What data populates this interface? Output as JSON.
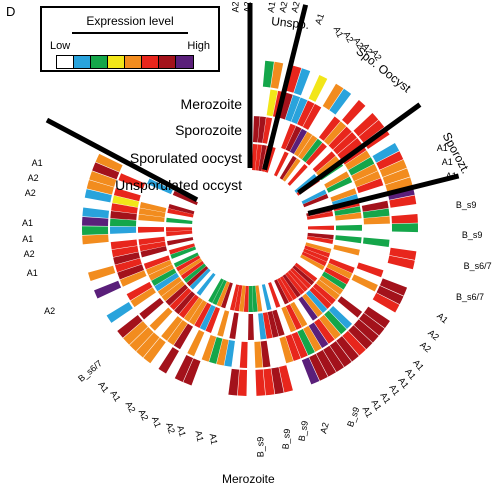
{
  "panel_letter": "D",
  "legend": {
    "title": "Expression level",
    "low": "Low",
    "high": "High",
    "scale_colors": [
      "#ffffff",
      "#29a3dc",
      "#14a64a",
      "#f2e619",
      "#f28c1e",
      "#e8261c",
      "#a3121b",
      "#5a1f7a"
    ]
  },
  "ring_key": [
    "Merozoite",
    "Sporozoite",
    "Sporulated oocyst",
    "Unsporulated occyst"
  ],
  "sector_labels": {
    "unspo": "Unspo.",
    "spo_oocyst": "Spo. Oocyst",
    "sporozt": "Sporozt.",
    "merozoite": "Merozoite"
  },
  "sample_labels": [
    {
      "text": "A2",
      "a": -3,
      "r": 200,
      "rot": -90
    },
    {
      "text": "A2",
      "a": 0,
      "r": 200,
      "rot": -90
    },
    {
      "text": "A1",
      "a": 6,
      "r": 200,
      "rot": -80
    },
    {
      "text": "A2",
      "a": 9,
      "r": 200,
      "rot": -78
    },
    {
      "text": "A2",
      "a": 12,
      "r": 200,
      "rot": -76
    },
    {
      "text": "A1",
      "a": 19,
      "r": 190,
      "rot": -70
    },
    {
      "text": "A1",
      "a": 25,
      "r": 185,
      "rot": 64
    },
    {
      "text": "A2",
      "a": 28,
      "r": 185,
      "rot": 62
    },
    {
      "text": "A2",
      "a": 31,
      "r": 185,
      "rot": 60
    },
    {
      "text": "A2",
      "a": 34,
      "r": 185,
      "rot": 58
    },
    {
      "text": "A2",
      "a": 37,
      "r": 185,
      "rot": 56
    },
    {
      "text": "A1",
      "a": 68,
      "r": 180,
      "rot": 0
    },
    {
      "text": "A1",
      "a": 72,
      "r": 180,
      "rot": 0
    },
    {
      "text": "A1",
      "a": 76,
      "r": 180,
      "rot": 0
    },
    {
      "text": "B_s9",
      "a": 84,
      "r": 185,
      "rot": 0
    },
    {
      "text": "B_s9",
      "a": 92,
      "r": 190,
      "rot": 0
    },
    {
      "text": "B_s6/7",
      "a": 100,
      "r": 195,
      "rot": 0
    },
    {
      "text": "B_s6/7",
      "a": 108,
      "r": 195,
      "rot": 0
    },
    {
      "text": "A1",
      "a": 115,
      "r": 185,
      "rot": 40
    },
    {
      "text": "A2",
      "a": 120,
      "r": 185,
      "rot": 40
    },
    {
      "text": "A2",
      "a": 124,
      "r": 185,
      "rot": 40
    },
    {
      "text": "A1",
      "a": 129,
      "r": 190,
      "rot": 50
    },
    {
      "text": "A1",
      "a": 132,
      "r": 190,
      "rot": 52
    },
    {
      "text": "A1",
      "a": 135,
      "r": 190,
      "rot": 54
    },
    {
      "text": "A1",
      "a": 138,
      "r": 190,
      "rot": 56
    },
    {
      "text": "A1",
      "a": 141,
      "r": 190,
      "rot": 58
    },
    {
      "text": "A1",
      "a": 144,
      "r": 190,
      "rot": 60
    },
    {
      "text": "A1",
      "a": 147,
      "r": 190,
      "rot": 62
    },
    {
      "text": "B_s9",
      "a": 152,
      "r": 185,
      "rot": -70
    },
    {
      "text": "A2",
      "a": 159,
      "r": 185,
      "rot": -75
    },
    {
      "text": "B_s9",
      "a": 166,
      "r": 180,
      "rot": -80
    },
    {
      "text": "B_s9",
      "a": 171,
      "r": 185,
      "rot": -85
    },
    {
      "text": "B_s9",
      "a": 178,
      "r": 190,
      "rot": -90
    },
    {
      "text": "A1",
      "a": 189,
      "r": 185,
      "rot": 80
    },
    {
      "text": "A1",
      "a": 193,
      "r": 185,
      "rot": 78
    },
    {
      "text": "A1",
      "a": 198,
      "r": 185,
      "rot": 75
    },
    {
      "text": "A2",
      "a": 201,
      "r": 185,
      "rot": 72
    },
    {
      "text": "A1",
      "a": 205,
      "r": 185,
      "rot": 70
    },
    {
      "text": "A2",
      "a": 209,
      "r": 185,
      "rot": 66
    },
    {
      "text": "A2",
      "a": 213,
      "r": 185,
      "rot": 62
    },
    {
      "text": "A1",
      "a": 218,
      "r": 185,
      "rot": 58
    },
    {
      "text": "A1",
      "a": 222,
      "r": 185,
      "rot": 54
    },
    {
      "text": "B_s6/7",
      "a": 229,
      "r": 190,
      "rot": -40
    },
    {
      "text": "A2",
      "a": 247,
      "r": 185,
      "rot": 0
    },
    {
      "text": "A1",
      "a": 258,
      "r": 190,
      "rot": 0
    },
    {
      "text": "A2",
      "a": 263,
      "r": 190,
      "rot": 0
    },
    {
      "text": "A1",
      "a": 267,
      "r": 190,
      "rot": 0
    },
    {
      "text": "A1",
      "a": 271,
      "r": 190,
      "rot": 0
    },
    {
      "text": "A2",
      "a": 279,
      "r": 190,
      "rot": 0
    },
    {
      "text": "A2",
      "a": 283,
      "r": 190,
      "rot": 0
    },
    {
      "text": "A1",
      "a": 287,
      "r": 190,
      "rot": 0
    }
  ]
}
